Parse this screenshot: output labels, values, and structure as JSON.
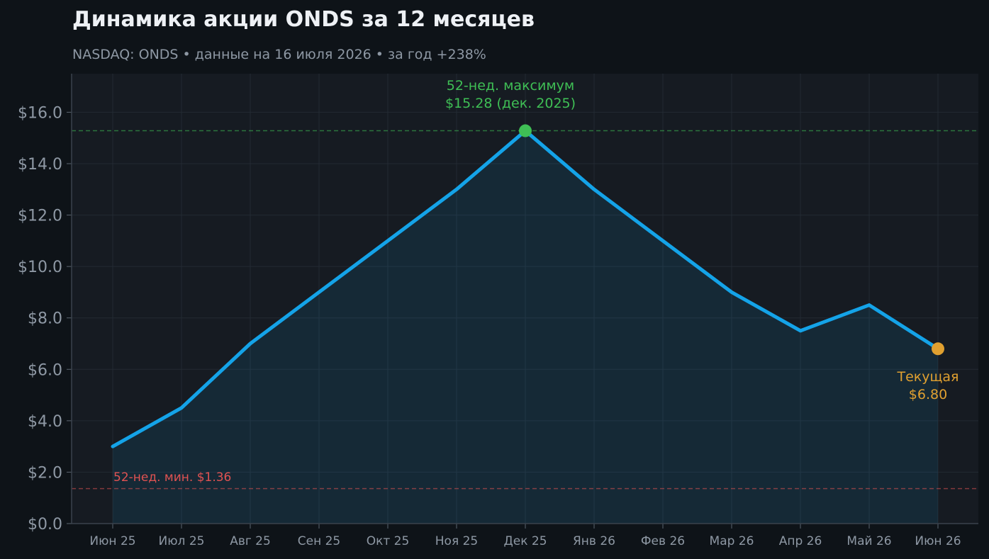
{
  "header": {
    "title": "Динамика акции ONDS за 12 месяцев",
    "subtitle": "NASDAQ: ONDS  •  данные на 16 июля 2026  •  за год +238%"
  },
  "colors": {
    "background": "#0e1318",
    "plot_bg": "#161b22",
    "line": "#14a3e8",
    "area": "#14a3e8",
    "high": "#3fbf55",
    "low": "#e05252",
    "current": "#e0a030",
    "grid": "#232a33",
    "tick": "#8e98a4"
  },
  "chart_data": {
    "type": "line",
    "title": "Динамика акции ONDS за 12 месяцев",
    "xlabel": "",
    "ylabel": "",
    "categories": [
      "Июн 25",
      "Июл 25",
      "Авг 25",
      "Сен 25",
      "Окт 25",
      "Ноя 25",
      "Дек 25",
      "Янв 26",
      "Фев 26",
      "Мар 26",
      "Апр 26",
      "Май 26",
      "Июн 26"
    ],
    "series": [
      {
        "values": [
          3.0,
          4.5,
          7.0,
          9.0,
          11.0,
          13.0,
          15.28,
          13.0,
          11.0,
          9.0,
          7.5,
          8.5,
          6.8
        ]
      }
    ],
    "ylim": [
      0,
      17.5
    ],
    "yticks": [
      0,
      2,
      4,
      6,
      8,
      10,
      12,
      14,
      16
    ],
    "ytick_labels": [
      "$0.0",
      "$2.0",
      "$4.0",
      "$6.0",
      "$8.0",
      "$10.0",
      "$12.0",
      "$14.0",
      "$16.0"
    ],
    "grid": true,
    "reference_lines": [
      {
        "y": 15.28,
        "kind": "high"
      },
      {
        "y": 1.36,
        "kind": "low"
      }
    ],
    "annotations": {
      "high_line1": "52-нед. максимум",
      "high_line2": "$15.28 (дек. 2025)",
      "high_index": 6,
      "low_label": "52-нед. мин. $1.36",
      "current_line1": "Текущая",
      "current_line2": "$6.80",
      "current_index": 12
    }
  }
}
